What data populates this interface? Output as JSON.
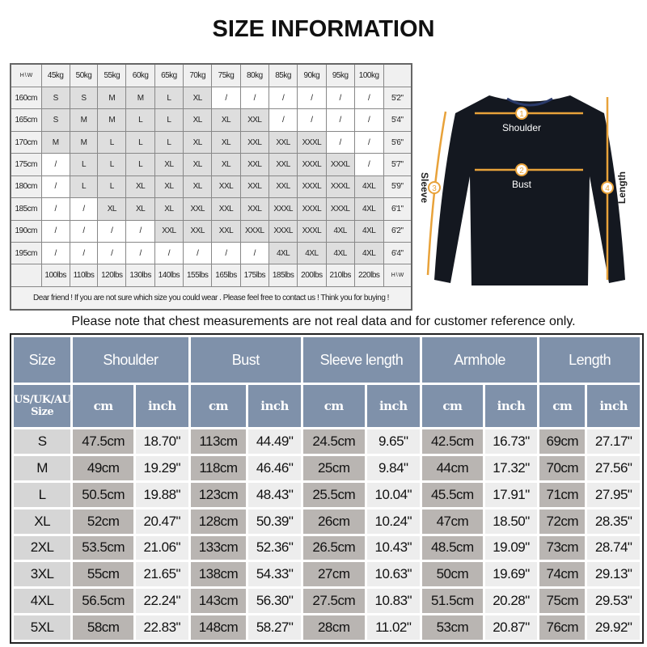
{
  "title": "SIZE INFORMATION",
  "top_table": {
    "corner": {
      "h": "H",
      "w": "W"
    },
    "weights": [
      "45kg",
      "50kg",
      "55kg",
      "60kg",
      "65kg",
      "70kg",
      "75kg",
      "80kg",
      "85kg",
      "90kg",
      "95kg",
      "100kg"
    ],
    "rows": [
      {
        "height": "160cm",
        "sizes": [
          "S",
          "S",
          "M",
          "M",
          "L",
          "XL",
          "/",
          "/",
          "/",
          "/",
          "/",
          "/"
        ],
        "feet": "5'2\""
      },
      {
        "height": "165cm",
        "sizes": [
          "S",
          "M",
          "M",
          "L",
          "L",
          "XL",
          "XL",
          "XXL",
          "/",
          "/",
          "/",
          "/"
        ],
        "feet": "5'4\""
      },
      {
        "height": "170cm",
        "sizes": [
          "M",
          "M",
          "L",
          "L",
          "L",
          "XL",
          "XL",
          "XXL",
          "XXL",
          "XXXL",
          "/",
          "/"
        ],
        "feet": "5'6\""
      },
      {
        "height": "175cm",
        "sizes": [
          "/",
          "L",
          "L",
          "L",
          "XL",
          "XL",
          "XL",
          "XXL",
          "XXL",
          "XXXL",
          "XXXL",
          "/"
        ],
        "feet": "5'7\""
      },
      {
        "height": "180cm",
        "sizes": [
          "/",
          "L",
          "L",
          "XL",
          "XL",
          "XL",
          "XXL",
          "XXL",
          "XXL",
          "XXXL",
          "XXXL",
          "4XL"
        ],
        "feet": "5'9\""
      },
      {
        "height": "185cm",
        "sizes": [
          "/",
          "/",
          "XL",
          "XL",
          "XL",
          "XXL",
          "XXL",
          "XXL",
          "XXXL",
          "XXXL",
          "XXXL",
          "4XL"
        ],
        "feet": "6'1\""
      },
      {
        "height": "190cm",
        "sizes": [
          "/",
          "/",
          "/",
          "/",
          "XXL",
          "XXL",
          "XXL",
          "XXXL",
          "XXXL",
          "XXXL",
          "4XL",
          "4XL"
        ],
        "feet": "6'2\""
      },
      {
        "height": "195cm",
        "sizes": [
          "/",
          "/",
          "/",
          "/",
          "/",
          "/",
          "/",
          "/",
          "4XL",
          "4XL",
          "4XL",
          "4XL"
        ],
        "feet": "6'4\""
      }
    ],
    "lbs": [
      "100lbs",
      "110lbs",
      "120lbs",
      "130lbs",
      "140lbs",
      "155lbs",
      "165lbs",
      "175lbs",
      "185lbs",
      "200lbs",
      "210lbs",
      "220lbs"
    ],
    "footer": "Dear friend ! If you are not sure which size you could wear . Please feel free to contact us ! Think you for buying !"
  },
  "diagram": {
    "labels": [
      "Shoulder",
      "Bust",
      "Sleeve",
      "Length"
    ],
    "numbers": [
      "1",
      "2",
      "3",
      "4"
    ],
    "arrow_color": "#e8a23a"
  },
  "note": "Please note that chest measurements  are not real data and for customer reference only.",
  "size_table": {
    "header": [
      "Size",
      "Shoulder",
      "Bust",
      "Sleeve length",
      "Armhole",
      "Length"
    ],
    "sub_first": "US/UK/AU Size",
    "units": [
      "cm",
      "inch"
    ],
    "rows": [
      {
        "size": "S",
        "values": [
          "47.5cm",
          "18.70\"",
          "113cm",
          "44.49\"",
          "24.5cm",
          "9.65\"",
          "42.5cm",
          "16.73\"",
          "69cm",
          "27.17\""
        ]
      },
      {
        "size": "M",
        "values": [
          "49cm",
          "19.29\"",
          "118cm",
          "46.46\"",
          "25cm",
          "9.84\"",
          "44cm",
          "17.32\"",
          "70cm",
          "27.56\""
        ]
      },
      {
        "size": "L",
        "values": [
          "50.5cm",
          "19.88\"",
          "123cm",
          "48.43\"",
          "25.5cm",
          "10.04\"",
          "45.5cm",
          "17.91\"",
          "71cm",
          "27.95\""
        ]
      },
      {
        "size": "XL",
        "values": [
          "52cm",
          "20.47\"",
          "128cm",
          "50.39\"",
          "26cm",
          "10.24\"",
          "47cm",
          "18.50\"",
          "72cm",
          "28.35\""
        ]
      },
      {
        "size": "2XL",
        "values": [
          "53.5cm",
          "21.06\"",
          "133cm",
          "52.36\"",
          "26.5cm",
          "10.43\"",
          "48.5cm",
          "19.09\"",
          "73cm",
          "28.74\""
        ]
      },
      {
        "size": "3XL",
        "values": [
          "55cm",
          "21.65\"",
          "138cm",
          "54.33\"",
          "27cm",
          "10.63\"",
          "50cm",
          "19.69\"",
          "74cm",
          "29.13\""
        ]
      },
      {
        "size": "4XL",
        "values": [
          "56.5cm",
          "22.24\"",
          "143cm",
          "56.30\"",
          "27.5cm",
          "10.83\"",
          "51.5cm",
          "20.28\"",
          "75cm",
          "29.53\""
        ]
      },
      {
        "size": "5XL",
        "values": [
          "58cm",
          "22.83\"",
          "148cm",
          "58.27\"",
          "28cm",
          "11.02\"",
          "53cm",
          "20.87\"",
          "76cm",
          "29.92\""
        ]
      }
    ]
  }
}
